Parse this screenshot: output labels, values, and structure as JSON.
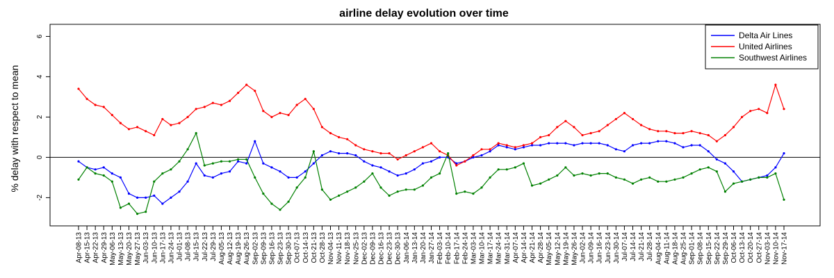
{
  "chart_data": {
    "type": "line",
    "title": "airline delay evolution over time",
    "ylabel": "% delay with respect to mean",
    "xlabel": "",
    "ylim": [
      -3.4,
      6.6
    ],
    "yticks": [
      -2,
      0,
      2,
      4,
      6
    ],
    "ytick_labels": [
      "-2",
      "0",
      "2",
      "4",
      "6"
    ],
    "zero_line": true,
    "grid": false,
    "legend_position": "top-right",
    "categories": [
      "Apr-08-13",
      "Apr-15-13",
      "Apr-22-13",
      "Apr-29-13",
      "May-06-13",
      "May-13-13",
      "May-20-13",
      "May-27-13",
      "Jun-03-13",
      "Jun-10-13",
      "Jun-17-13",
      "Jun-24-13",
      "Jul-01-13",
      "Jul-08-13",
      "Jul-15-13",
      "Jul-22-13",
      "Jul-29-13",
      "Aug-05-13",
      "Aug-12-13",
      "Aug-19-13",
      "Aug-26-13",
      "Sep-02-13",
      "Sep-09-13",
      "Sep-16-13",
      "Sep-23-13",
      "Sep-30-13",
      "Oct-07-13",
      "Oct-14-13",
      "Oct-21-13",
      "Oct-28-13",
      "Nov-04-13",
      "Nov-11-13",
      "Nov-18-13",
      "Nov-25-13",
      "Dec-02-13",
      "Dec-09-13",
      "Dec-16-13",
      "Dec-23-13",
      "Dec-30-13",
      "Jan-06-14",
      "Jan-13-14",
      "Jan-20-14",
      "Jan-27-14",
      "Feb-03-14",
      "Feb-10-14",
      "Feb-17-14",
      "Feb-24-14",
      "Mar-03-14",
      "Mar-10-14",
      "Mar-17-14",
      "Mar-24-14",
      "Mar-31-14",
      "Apr-07-14",
      "Apr-14-14",
      "Apr-21-14",
      "Apr-28-14",
      "May-05-14",
      "May-12-14",
      "May-19-14",
      "May-26-14",
      "Jun-02-14",
      "Jun-09-14",
      "Jun-16-14",
      "Jun-23-14",
      "Jun-30-14",
      "Jul-07-14",
      "Jul-14-14",
      "Jul-21-14",
      "Jul-28-14",
      "Aug-04-14",
      "Aug-11-14",
      "Aug-18-14",
      "Aug-25-14",
      "Sep-01-14",
      "Sep-08-14",
      "Sep-15-14",
      "Sep-22-14",
      "Sep-29-14",
      "Oct-06-14",
      "Oct-13-14",
      "Oct-20-14",
      "Oct-27-14",
      "Nov-03-14",
      "Nov-10-14",
      "Nov-17-14"
    ],
    "series": [
      {
        "name": "Delta Air Lines",
        "color": "#0000ff",
        "values": [
          -0.2,
          -0.5,
          -0.6,
          -0.5,
          -0.8,
          -1.0,
          -1.8,
          -2.0,
          -2.0,
          -1.9,
          -2.3,
          -2.0,
          -1.7,
          -1.2,
          -0.3,
          -0.9,
          -1.0,
          -0.8,
          -0.7,
          -0.2,
          -0.3,
          0.8,
          -0.3,
          -0.5,
          -0.7,
          -1.0,
          -1.0,
          -0.7,
          -0.3,
          0.1,
          0.3,
          0.2,
          0.2,
          0.1,
          -0.2,
          -0.4,
          -0.5,
          -0.7,
          -0.9,
          -0.8,
          -0.6,
          -0.3,
          -0.2,
          0.0,
          0.0,
          -0.3,
          -0.2,
          0.0,
          0.1,
          0.3,
          0.6,
          0.5,
          0.4,
          0.5,
          0.6,
          0.6,
          0.7,
          0.7,
          0.7,
          0.6,
          0.7,
          0.7,
          0.7,
          0.6,
          0.4,
          0.3,
          0.6,
          0.7,
          0.7,
          0.8,
          0.8,
          0.7,
          0.5,
          0.6,
          0.6,
          0.3,
          -0.1,
          -0.3,
          -0.7,
          -1.2,
          -1.1,
          -1.0,
          -0.9,
          -0.5,
          0.2
        ]
      },
      {
        "name": "United Airlines",
        "color": "#ff0000",
        "values": [
          3.4,
          2.9,
          2.6,
          2.5,
          2.1,
          1.7,
          1.4,
          1.5,
          1.3,
          1.1,
          1.9,
          1.6,
          1.7,
          2.0,
          2.4,
          2.5,
          2.7,
          2.6,
          2.8,
          3.2,
          3.6,
          3.3,
          2.3,
          2.0,
          2.2,
          2.1,
          2.6,
          2.9,
          2.4,
          1.5,
          1.2,
          1.0,
          0.9,
          0.6,
          0.4,
          0.3,
          0.2,
          0.2,
          -0.1,
          0.1,
          0.3,
          0.5,
          0.7,
          0.3,
          0.1,
          -0.4,
          -0.2,
          0.1,
          0.4,
          0.4,
          0.7,
          0.6,
          0.5,
          0.6,
          0.7,
          1.0,
          1.1,
          1.5,
          1.8,
          1.5,
          1.1,
          1.2,
          1.3,
          1.6,
          1.9,
          2.2,
          1.9,
          1.6,
          1.4,
          1.3,
          1.3,
          1.2,
          1.2,
          1.3,
          1.2,
          1.1,
          0.8,
          1.1,
          1.5,
          2.0,
          2.3,
          2.4,
          2.2,
          3.6,
          2.4
        ]
      },
      {
        "name": "Southwest Airlines",
        "color": "#008000",
        "values": [
          -1.1,
          -0.5,
          -0.8,
          -0.9,
          -1.2,
          -2.5,
          -2.3,
          -2.8,
          -2.7,
          -1.2,
          -0.8,
          -0.6,
          -0.2,
          0.4,
          1.2,
          -0.4,
          -0.3,
          -0.2,
          -0.2,
          -0.1,
          -0.1,
          -1.0,
          -1.8,
          -2.3,
          -2.6,
          -2.2,
          -1.5,
          -1.0,
          0.3,
          -1.6,
          -2.1,
          -1.9,
          -1.7,
          -1.5,
          -1.2,
          -0.8,
          -1.5,
          -1.9,
          -1.7,
          -1.6,
          -1.6,
          -1.4,
          -1.0,
          -0.8,
          0.2,
          -1.8,
          -1.7,
          -1.8,
          -1.5,
          -1.0,
          -0.6,
          -0.6,
          -0.5,
          -0.3,
          -1.4,
          -1.3,
          -1.1,
          -0.9,
          -0.5,
          -0.9,
          -0.8,
          -0.9,
          -0.8,
          -0.8,
          -1.0,
          -1.1,
          -1.3,
          -1.1,
          -1.0,
          -1.2,
          -1.2,
          -1.1,
          -1.0,
          -0.8,
          -0.6,
          -0.5,
          -0.7,
          -1.7,
          -1.3,
          -1.2,
          -1.1,
          -1.0,
          -1.0,
          -0.8,
          -2.1
        ]
      }
    ]
  }
}
